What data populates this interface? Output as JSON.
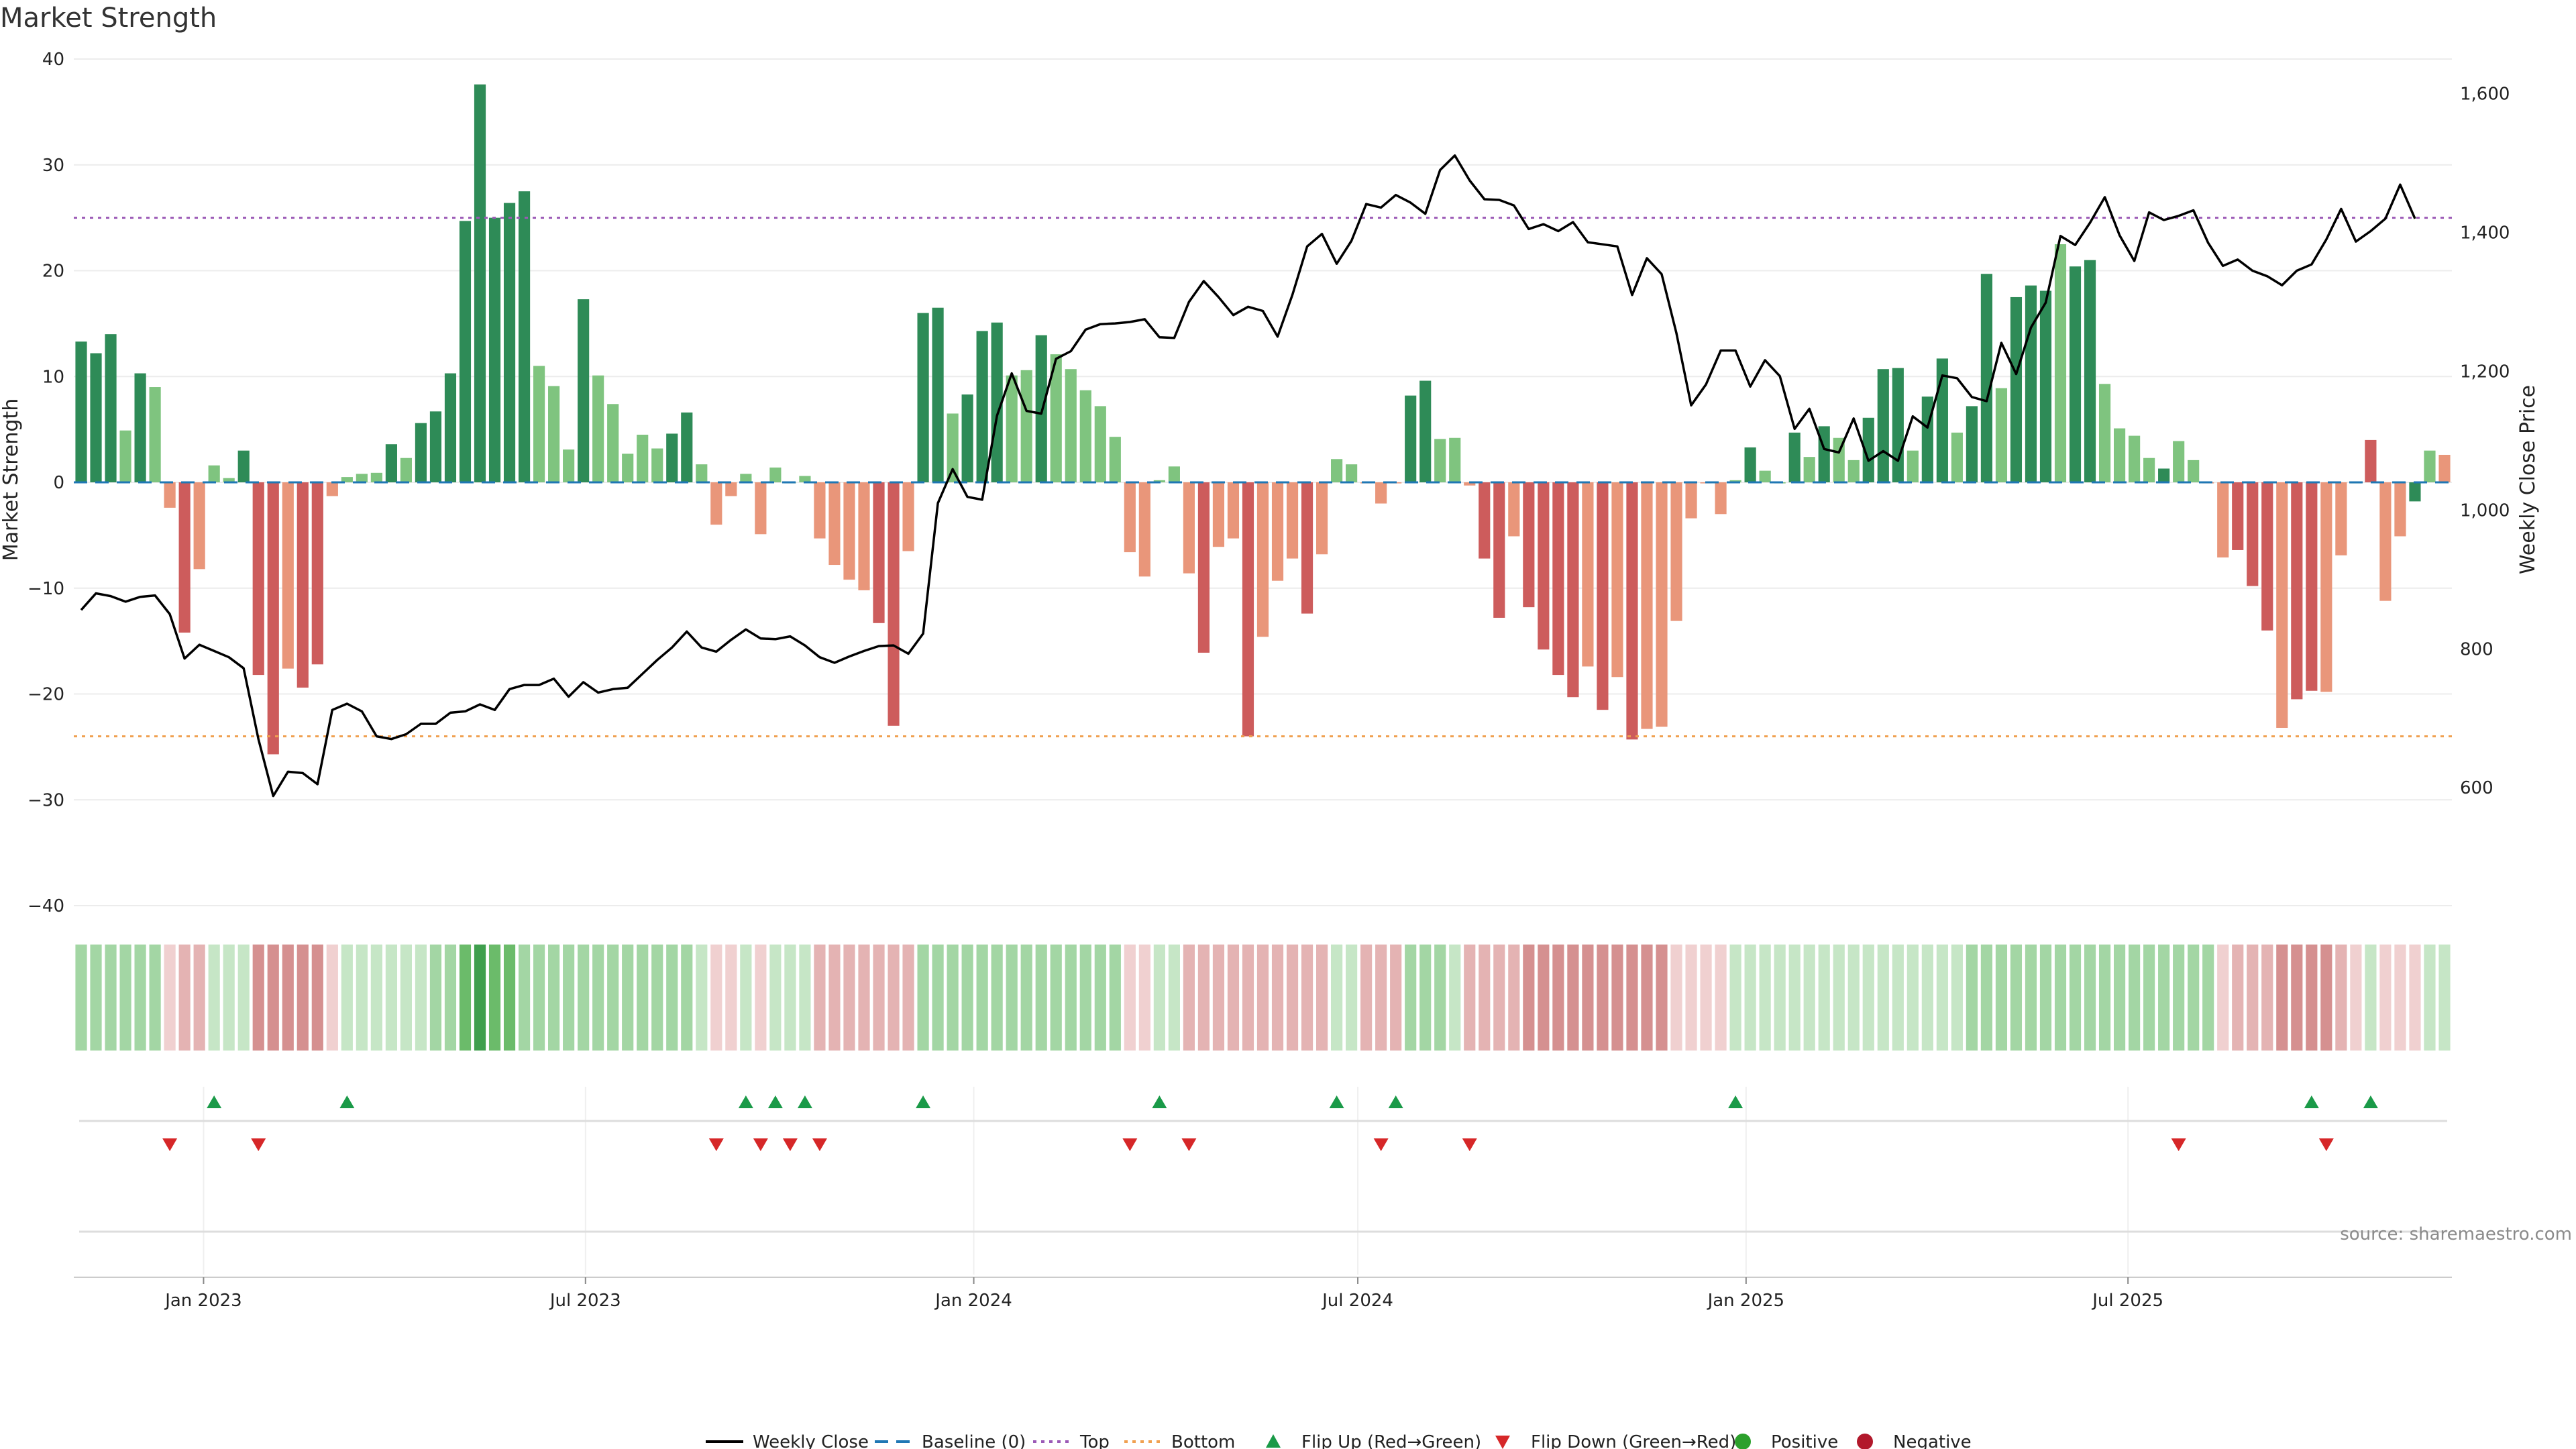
{
  "page": {
    "title": "Market Strength"
  },
  "legend": {
    "weekly_close": "Weekly Close",
    "baseline": "Baseline (0)",
    "top": "Top",
    "bottom": "Bottom",
    "flip_up": "Flip Up (Red→Green)",
    "flip_down": "Flip Down (Green→Red)",
    "positive": "Positive",
    "negative": "Negative"
  },
  "source": "source: sharemaestro.com",
  "colors": {
    "strong_green": "#2e8b57",
    "light_green": "#7fc47f",
    "strong_red": "#cd5c5c",
    "light_red": "#e9967a",
    "line": "#000000",
    "baseline": "#1f77b4",
    "top": "#9b59b6",
    "bottom": "#f0a050",
    "flip_up": "#1a9a48",
    "flip_down": "#d62728",
    "positive": "#2ca02c",
    "negative": "#b2182b"
  },
  "chart_data": {
    "type": "bar+line",
    "title": "Market Strength",
    "ylabel_left": "Market Strength",
    "ylabel_right": "Weekly Close Price",
    "ylim_left": [
      -40,
      40
    ],
    "yticks_left": [
      "40",
      "30",
      "20",
      "10",
      "0",
      "−10",
      "−20",
      "−30",
      "−40"
    ],
    "yticks_left_values": [
      40,
      30,
      20,
      10,
      0,
      -10,
      -20,
      -30,
      -40
    ],
    "ylim_right": [
      430,
      1650
    ],
    "yticks_right": [
      "1,600",
      "1,400",
      "1,200",
      "1,000",
      "800",
      "600"
    ],
    "yticks_right_values": [
      1600,
      1400,
      1200,
      1000,
      800,
      600
    ],
    "x_start": "2022-11-04",
    "xticks": [
      "Jan 2023",
      "Jul 2023",
      "Jan 2024",
      "Jul 2024",
      "Jan 2025",
      "Jul 2025"
    ],
    "xticks_dates": [
      "2023-01-01",
      "2023-07-01",
      "2024-01-01",
      "2024-07-01",
      "2025-01-01",
      "2025-07-01"
    ],
    "top_line": 25,
    "bottom_line": -24,
    "grid": true,
    "strength": [
      13.3,
      12.2,
      14.0,
      4.9,
      10.3,
      9.0,
      -2.4,
      -14.2,
      -8.2,
      1.6,
      0.4,
      3.0,
      -18.2,
      -25.7,
      -17.6,
      -19.4,
      -17.2,
      -1.3,
      0.5,
      0.8,
      0.9,
      3.6,
      2.3,
      5.6,
      6.7,
      10.3,
      24.7,
      37.6,
      25.0,
      26.4,
      27.5,
      11.0,
      9.1,
      3.1,
      17.3,
      10.1,
      7.4,
      2.7,
      4.5,
      3.2,
      4.6,
      6.6,
      1.7,
      -4.0,
      -1.3,
      0.8,
      -4.9,
      1.4,
      -0.1,
      0.6,
      -5.3,
      -7.8,
      -9.2,
      -10.2,
      -13.3,
      -23.0,
      -6.5,
      16.0,
      16.5,
      6.5,
      8.3,
      14.3,
      15.1,
      10.1,
      10.6,
      13.9,
      12.1,
      10.7,
      8.7,
      7.2,
      4.3,
      -6.6,
      -8.9,
      0.2,
      1.5,
      -8.6,
      -16.1,
      -6.1,
      -5.3,
      -24.0,
      -14.6,
      -9.3,
      -7.2,
      -12.4,
      -6.8,
      2.2,
      1.7,
      -0.1,
      -2.0,
      -0.1,
      8.2,
      9.6,
      4.1,
      4.2,
      -0.3,
      -7.2,
      -12.8,
      -5.1,
      -11.8,
      -15.8,
      -18.2,
      -20.3,
      -17.4,
      -21.5,
      -18.4,
      -24.3,
      -23.3,
      -23.1,
      -13.1,
      -3.4,
      -0.1,
      -3.0,
      0.2,
      3.3,
      1.1,
      -0.1,
      4.7,
      2.4,
      5.3,
      4.2,
      2.1,
      6.1,
      10.7,
      10.8,
      3.0,
      8.1,
      11.7,
      4.7,
      7.2,
      19.7,
      8.9,
      17.5,
      18.6,
      18.1,
      22.5,
      20.4,
      21.0,
      9.3,
      5.1,
      4.4,
      2.3,
      1.3,
      3.9,
      2.1,
      -0.1,
      -7.1,
      -6.4,
      -9.8,
      -14.0,
      -23.2,
      -20.5,
      -19.7,
      -19.8,
      -6.9,
      -0.1,
      4.0,
      -11.2,
      -5.1,
      -1.8,
      3.0,
      2.6
    ],
    "weekly_close": [
      856,
      880,
      876,
      868,
      875,
      877,
      850,
      786,
      806,
      797,
      788,
      772,
      670,
      588,
      623,
      621,
      605,
      712,
      721,
      710,
      674,
      670,
      677,
      692,
      692,
      708,
      710,
      720,
      712,
      742,
      748,
      748,
      757,
      731,
      752,
      737,
      742,
      744,
      764,
      784,
      802,
      825,
      802,
      796,
      813,
      828,
      815,
      814,
      818,
      805,
      788,
      780,
      789,
      797,
      804,
      805,
      793,
      822,
      1010,
      1059,
      1019,
      1015,
      1136,
      1197,
      1143,
      1139,
      1218,
      1229,
      1260,
      1268,
      1269,
      1271,
      1275,
      1249,
      1248,
      1300,
      1330,
      1307,
      1281,
      1293,
      1287,
      1250,
      1310,
      1380,
      1398,
      1355,
      1388,
      1441,
      1436,
      1454,
      1443,
      1427,
      1490,
      1511,
      1475,
      1448,
      1447,
      1439,
      1405,
      1412,
      1402,
      1415,
      1386,
      1383,
      1380,
      1310,
      1363,
      1340,
      1255,
      1151,
      1181,
      1230,
      1230,
      1178,
      1216,
      1193,
      1117,
      1146,
      1088,
      1083,
      1132,
      1071,
      1085,
      1071,
      1135,
      1119,
      1194,
      1190,
      1163,
      1157,
      1241,
      1196,
      1263,
      1299,
      1395,
      1382,
      1414,
      1451,
      1396,
      1359,
      1429,
      1418,
      1424,
      1432,
      1385,
      1352,
      1361,
      1345,
      1337,
      1324,
      1345,
      1354,
      1390,
      1434,
      1387,
      1402,
      1420,
      1469,
      1420
    ],
    "bar_shades": [
      3,
      3,
      3,
      2,
      3,
      2,
      -2,
      -3,
      -2,
      2,
      1,
      3,
      -3,
      -3,
      -2,
      -3,
      -3,
      -1,
      1,
      1,
      1,
      3,
      2,
      3,
      3,
      3,
      3,
      4,
      3,
      3,
      3,
      2,
      2,
      2,
      3,
      2,
      2,
      2,
      2,
      2,
      3,
      3,
      2,
      -2,
      -1,
      1,
      -2,
      1,
      1,
      1,
      -2,
      -2,
      -2,
      -2,
      -3,
      -3,
      -2,
      3,
      3,
      2,
      3,
      3,
      3,
      2,
      2,
      3,
      2,
      2,
      2,
      2,
      2,
      -2,
      -2,
      1,
      2,
      -2,
      -3,
      -2,
      -2,
      -3,
      -2,
      -2,
      -2,
      -3,
      -2,
      2,
      2,
      -1,
      -2,
      -1,
      3,
      3,
      2,
      2,
      -1,
      -3,
      -3,
      -2,
      -3,
      -3,
      -3,
      -3,
      -2,
      -3,
      -2,
      -3,
      -2,
      -2,
      -2,
      -2,
      -1,
      -2,
      1,
      3,
      2,
      1,
      3,
      2,
      3,
      2,
      2,
      3,
      3,
      3,
      2,
      3,
      3,
      2,
      3,
      3,
      2,
      3,
      3,
      3,
      2,
      3,
      3,
      2,
      2,
      2,
      2,
      3,
      2,
      1,
      -2,
      -2,
      -3,
      -3,
      -3,
      -2,
      -3,
      -3,
      -2,
      -1,
      3,
      -3,
      -2,
      -1,
      3,
      2
    ],
    "heat_levels": [
      3,
      3,
      3,
      3,
      3,
      3,
      -1,
      -2,
      -2,
      2,
      2,
      2,
      -3,
      -3,
      -3,
      -3,
      -3,
      -1,
      2,
      2,
      2,
      2,
      2,
      2,
      3,
      3,
      4,
      5,
      4,
      4,
      3,
      3,
      3,
      3,
      3,
      3,
      3,
      3,
      3,
      3,
      3,
      3,
      2,
      -1,
      -1,
      2,
      -1,
      2,
      2,
      2,
      -2,
      -2,
      -2,
      -2,
      -2,
      -2,
      -2,
      3,
      3,
      3,
      3,
      3,
      3,
      3,
      3,
      3,
      3,
      3,
      3,
      3,
      3,
      -1,
      -1,
      2,
      2,
      -2,
      -2,
      -2,
      -2,
      -2,
      -2,
      -2,
      -2,
      -2,
      -2,
      2,
      2,
      -2,
      -2,
      -2,
      3,
      3,
      3,
      2,
      -2,
      -2,
      -2,
      -2,
      -3,
      -3,
      -3,
      -3,
      -3,
      -3,
      -3,
      -3,
      -3,
      -3,
      -1,
      -1,
      -1,
      -1,
      2,
      2,
      2,
      2,
      2,
      2,
      2,
      2,
      2,
      2,
      2,
      2,
      2,
      2,
      2,
      2,
      3,
      3,
      3,
      3,
      3,
      3,
      3,
      3,
      3,
      3,
      3,
      3,
      3,
      3,
      3,
      3,
      3,
      -1,
      -2,
      -2,
      -2,
      -3,
      -3,
      -3,
      -3,
      -2,
      -1,
      2,
      -1,
      -1,
      -1,
      2,
      2
    ],
    "flip_up_weeks": [
      9,
      18,
      45,
      47,
      49,
      57,
      73,
      85,
      89,
      112,
      151,
      155
    ],
    "flip_down_weeks": [
      6,
      12,
      43,
      46,
      48,
      50,
      71,
      75,
      88,
      94,
      142,
      152
    ]
  }
}
